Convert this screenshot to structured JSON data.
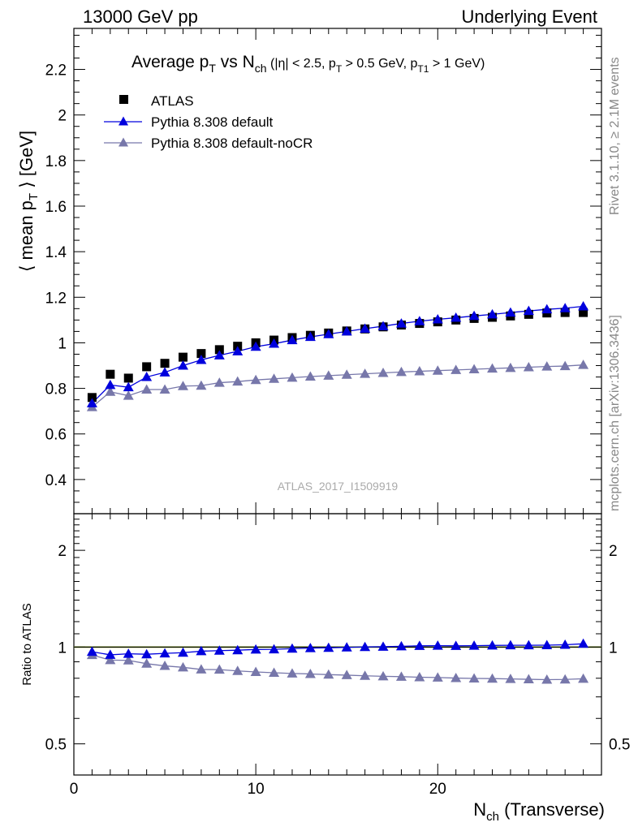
{
  "header": {
    "left": "13000 GeV pp",
    "right": "Underlying Event"
  },
  "side_labels": {
    "rivet": "Rivet 3.1.10, ≥ 2.1M events",
    "mcplots": "mcplots.cern.ch [arXiv:1306.3436]"
  },
  "analysis_label": "ATLAS_2017_I1509919",
  "colors": {
    "atlas": "#000000",
    "pythia": "#0000dd",
    "nocr": "#7777aa",
    "ratio_band": "#ccee66",
    "ratio_line": "#000000"
  },
  "chart_data": [
    {
      "type": "scatter",
      "title": {
        "main": "Average p",
        "main_sub": "T",
        "vs": " vs N",
        "vs_sub": "ch",
        "cuts": " (|η| < 2.5, p",
        "cut1_sub": "T",
        "cut1_rest": " > 0.5 GeV, p",
        "cut2_sub": "T1",
        "cut2_rest": " > 1 GeV)"
      },
      "ylabel": {
        "pre": "⟨ mean p",
        "sub": "T",
        "post": " ⟩ [GeV]"
      },
      "xlim": [
        0,
        29
      ],
      "ylim": [
        0.25,
        2.38
      ],
      "y_ticks": [
        0.4,
        0.6,
        0.8,
        1,
        1.2,
        1.4,
        1.6,
        1.8,
        2,
        2.2
      ],
      "y_tick_labels": [
        "0.4",
        "0.6",
        "0.8",
        "1",
        "1.2",
        "1.4",
        "1.6",
        "1.8",
        "2",
        "2.2"
      ],
      "legend": [
        "ATLAS",
        "Pythia 8.308 default",
        "Pythia 8.308 default-noCR"
      ],
      "x": [
        1,
        2,
        3,
        4,
        5,
        6,
        7,
        8,
        9,
        10,
        11,
        12,
        13,
        14,
        15,
        16,
        17,
        18,
        19,
        20,
        21,
        22,
        23,
        24,
        25,
        26,
        27,
        28
      ],
      "series": [
        {
          "name": "ATLAS",
          "values": [
            0.76,
            0.862,
            0.845,
            0.895,
            0.91,
            0.937,
            0.953,
            0.97,
            0.985,
            1.0,
            1.012,
            1.023,
            1.033,
            1.043,
            1.052,
            1.061,
            1.07,
            1.078,
            1.085,
            1.092,
            1.1,
            1.107,
            1.112,
            1.118,
            1.125,
            1.131,
            1.133,
            1.133
          ]
        },
        {
          "name": "Pythia 8.308 default",
          "values": [
            0.735,
            0.815,
            0.805,
            0.85,
            0.87,
            0.9,
            0.925,
            0.945,
            0.963,
            0.983,
            0.996,
            1.012,
            1.026,
            1.038,
            1.05,
            1.062,
            1.073,
            1.085,
            1.095,
            1.103,
            1.11,
            1.118,
            1.125,
            1.133,
            1.14,
            1.147,
            1.152,
            1.16
          ]
        },
        {
          "name": "Pythia 8.308 default-noCR",
          "values": [
            0.718,
            0.785,
            0.768,
            0.795,
            0.795,
            0.81,
            0.812,
            0.825,
            0.83,
            0.837,
            0.842,
            0.847,
            0.852,
            0.856,
            0.86,
            0.864,
            0.868,
            0.872,
            0.875,
            0.878,
            0.881,
            0.884,
            0.887,
            0.89,
            0.893,
            0.896,
            0.898,
            0.903
          ]
        }
      ]
    },
    {
      "type": "scatter",
      "ylabel": "Ratio to ATLAS",
      "xlabel": {
        "pre": "N",
        "sub": "ch",
        "post": " (Transverse)"
      },
      "xlim": [
        0,
        29
      ],
      "ylim": [
        0.4,
        2.6
      ],
      "y_scale": "log",
      "x_ticks": [
        0,
        10,
        20
      ],
      "x_tick_labels": [
        "0",
        "10",
        "20"
      ],
      "y_ticks": [
        0.5,
        1,
        2
      ],
      "y_tick_labels": [
        "0.5",
        "1",
        "2"
      ],
      "x": [
        1,
        2,
        3,
        4,
        5,
        6,
        7,
        8,
        9,
        10,
        11,
        12,
        13,
        14,
        15,
        16,
        17,
        18,
        19,
        20,
        21,
        22,
        23,
        24,
        25,
        26,
        27,
        28
      ],
      "series": [
        {
          "name": "Pythia 8.308 default",
          "values": [
            0.967,
            0.946,
            0.953,
            0.95,
            0.956,
            0.961,
            0.971,
            0.975,
            0.978,
            0.983,
            0.984,
            0.989,
            0.993,
            0.995,
            0.998,
            1.001,
            1.003,
            1.006,
            1.009,
            1.01,
            1.009,
            1.01,
            1.012,
            1.013,
            1.013,
            1.014,
            1.017,
            1.024
          ]
        },
        {
          "name": "Pythia 8.308 default-noCR",
          "values": [
            0.945,
            0.911,
            0.909,
            0.888,
            0.874,
            0.865,
            0.852,
            0.851,
            0.843,
            0.837,
            0.832,
            0.828,
            0.825,
            0.821,
            0.818,
            0.814,
            0.811,
            0.809,
            0.806,
            0.804,
            0.801,
            0.799,
            0.798,
            0.796,
            0.794,
            0.792,
            0.793,
            0.797
          ]
        }
      ]
    }
  ]
}
